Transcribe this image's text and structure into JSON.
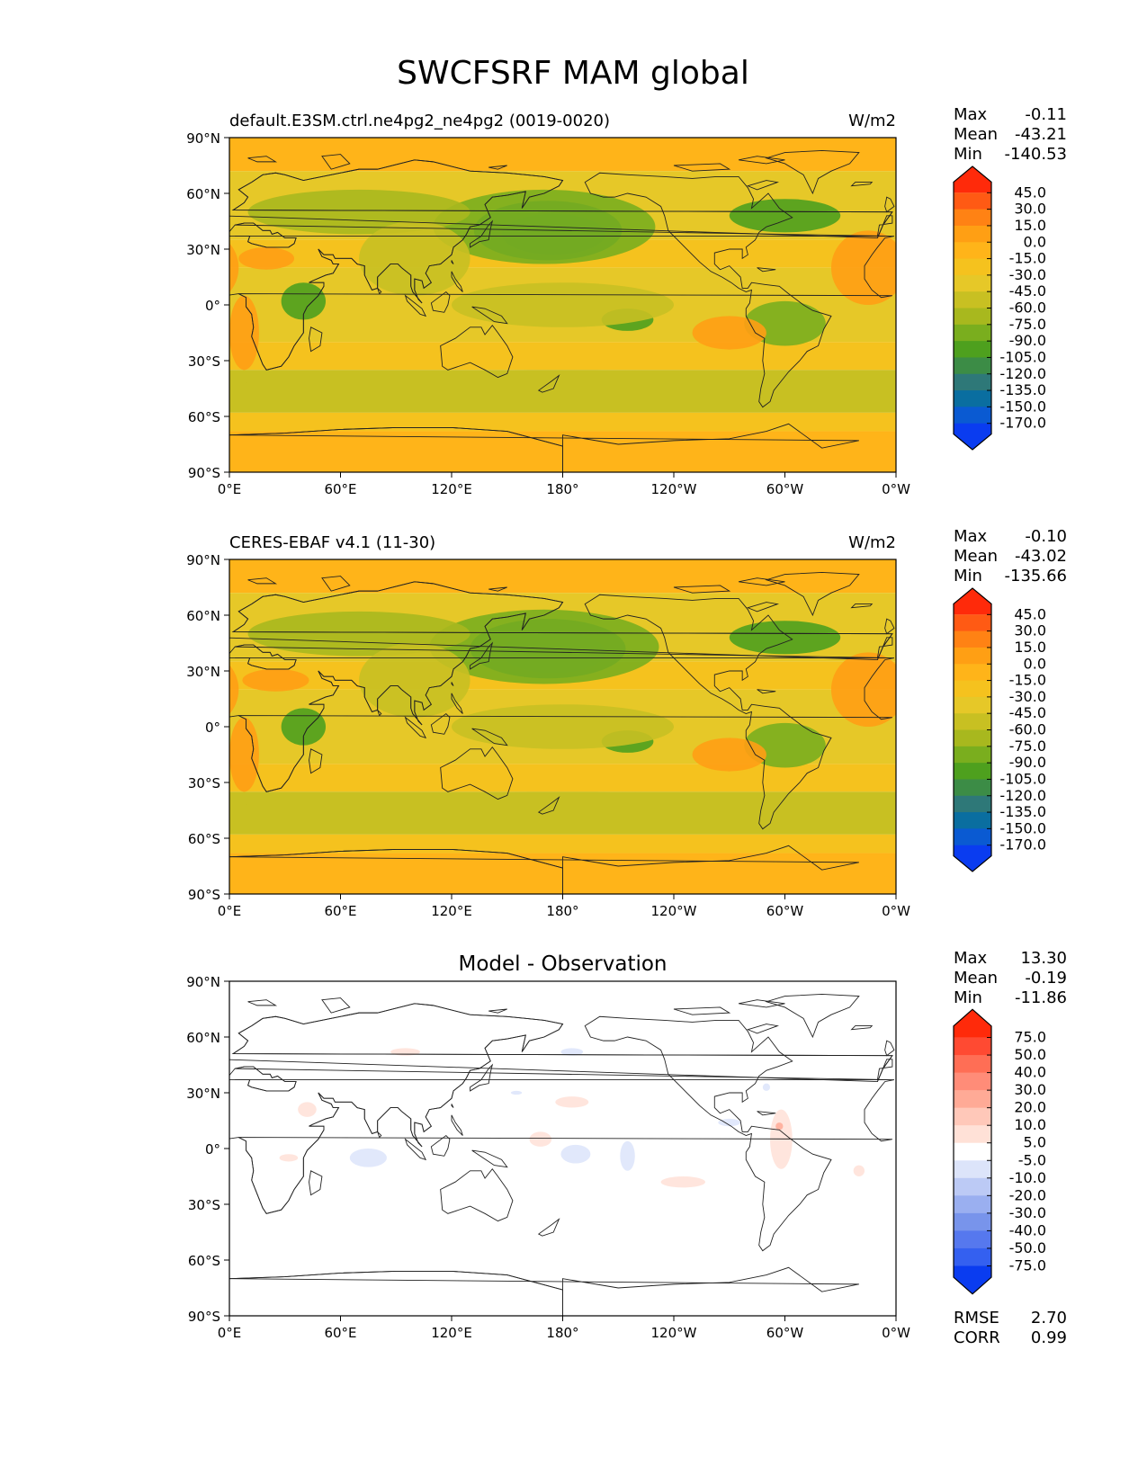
{
  "figure": {
    "title": "SWCFSRF MAM global",
    "lon_ticks": [
      "0°E",
      "60°E",
      "120°E",
      "180°",
      "120°W",
      "60°W",
      "0°W"
    ],
    "lat_ticks": [
      "90°N",
      "60°N",
      "30°N",
      "0°",
      "30°S",
      "60°S",
      "90°S"
    ]
  },
  "chart_data": [
    {
      "type": "heatmap",
      "panel": "test",
      "title_left": "default.E3SM.ctrl.ne4pg2_ne4pg2 (0019-0020)",
      "title_center": "",
      "units": "W/m2",
      "stats": [
        {
          "label": "Max",
          "value": "-0.11"
        },
        {
          "label": "Mean",
          "value": "-43.21"
        },
        {
          "label": "Min",
          "value": "-140.53"
        }
      ],
      "colorbar": {
        "labels": [
          "45.0",
          "30.0",
          "15.0",
          "0.0",
          "-15.0",
          "-30.0",
          "-45.0",
          "-60.0",
          "-75.0",
          "-90.0",
          "-105.0",
          "-120.0",
          "-135.0",
          "-150.0",
          "-170.0"
        ],
        "colors": [
          "#ff2a0a",
          "#ff5a14",
          "#ff8214",
          "#ff9f14",
          "#ffb419",
          "#f5c21e",
          "#e6c828",
          "#c8c022",
          "#a8b81e",
          "#7aae1e",
          "#4ea01e",
          "#3c8c46",
          "#2e7878",
          "#0a6ea0",
          "#0a5ad2",
          "#0a3cf0"
        ]
      },
      "stats_extra": [],
      "x_range": [
        0,
        360
      ],
      "y_range": [
        -90,
        90
      ],
      "features": [
        {
          "lon": 175,
          "lat": 38,
          "rx": 28,
          "ry": 11,
          "level": 13
        },
        {
          "lon": 172,
          "lat": 40,
          "rx": 40,
          "ry": 16,
          "level": 11
        },
        {
          "lon": 170,
          "lat": 42,
          "rx": 60,
          "ry": 20,
          "level": 9
        },
        {
          "lon": 300,
          "lat": 48,
          "rx": 30,
          "ry": 9,
          "level": 10
        },
        {
          "lon": 70,
          "lat": 50,
          "rx": 60,
          "ry": 12,
          "level": 8
        },
        {
          "lon": 40,
          "lat": 2,
          "rx": 12,
          "ry": 10,
          "level": 10
        },
        {
          "lon": 215,
          "lat": -8,
          "rx": 14,
          "ry": 6,
          "level": 10
        },
        {
          "lon": 300,
          "lat": -10,
          "rx": 22,
          "ry": 12,
          "level": 9
        },
        {
          "lon": 180,
          "lat": -45,
          "rx": 180,
          "ry": 10,
          "level": 7
        },
        {
          "lon": 180,
          "lat": 0,
          "rx": 60,
          "ry": 12,
          "level": 7
        },
        {
          "lon": 100,
          "lat": 25,
          "rx": 30,
          "ry": 20,
          "level": 7
        },
        {
          "lon": 8,
          "lat": -15,
          "rx": 8,
          "ry": 20,
          "level": 3
        },
        {
          "lon": 270,
          "lat": -15,
          "rx": 20,
          "ry": 9,
          "level": 3
        },
        {
          "lon": 345,
          "lat": 20,
          "rx": 20,
          "ry": 20,
          "level": 3
        },
        {
          "lon": 20,
          "lat": 25,
          "rx": 15,
          "ry": 6,
          "level": 3
        }
      ]
    },
    {
      "type": "heatmap",
      "panel": "reference",
      "title_left": "CERES-EBAF v4.1 (11-30)",
      "title_center": "",
      "units": "W/m2",
      "stats": [
        {
          "label": "Max",
          "value": "-0.10"
        },
        {
          "label": "Mean",
          "value": "-43.02"
        },
        {
          "label": "Min",
          "value": "-135.66"
        }
      ],
      "colorbar": {
        "labels": [
          "45.0",
          "30.0",
          "15.0",
          "0.0",
          "-15.0",
          "-30.0",
          "-45.0",
          "-60.0",
          "-75.0",
          "-90.0",
          "-105.0",
          "-120.0",
          "-135.0",
          "-150.0",
          "-170.0"
        ],
        "colors": [
          "#ff2a0a",
          "#ff5a14",
          "#ff8214",
          "#ff9f14",
          "#ffb419",
          "#f5c21e",
          "#e6c828",
          "#c8c022",
          "#a8b81e",
          "#7aae1e",
          "#4ea01e",
          "#3c8c46",
          "#2e7878",
          "#0a6ea0",
          "#0a5ad2",
          "#0a3cf0"
        ]
      },
      "stats_extra": [],
      "x_range": [
        0,
        360
      ],
      "y_range": [
        -90,
        90
      ],
      "features": [
        {
          "lon": 175,
          "lat": 40,
          "rx": 28,
          "ry": 11,
          "level": 12
        },
        {
          "lon": 172,
          "lat": 42,
          "rx": 42,
          "ry": 16,
          "level": 11
        },
        {
          "lon": 170,
          "lat": 43,
          "rx": 62,
          "ry": 20,
          "level": 9
        },
        {
          "lon": 300,
          "lat": 48,
          "rx": 30,
          "ry": 9,
          "level": 10
        },
        {
          "lon": 70,
          "lat": 50,
          "rx": 60,
          "ry": 12,
          "level": 8
        },
        {
          "lon": 40,
          "lat": 0,
          "rx": 12,
          "ry": 10,
          "level": 10
        },
        {
          "lon": 215,
          "lat": -8,
          "rx": 14,
          "ry": 6,
          "level": 10
        },
        {
          "lon": 300,
          "lat": -10,
          "rx": 22,
          "ry": 12,
          "level": 9
        },
        {
          "lon": 180,
          "lat": -45,
          "rx": 180,
          "ry": 10,
          "level": 7
        },
        {
          "lon": 180,
          "lat": 0,
          "rx": 60,
          "ry": 12,
          "level": 7
        },
        {
          "lon": 100,
          "lat": 25,
          "rx": 30,
          "ry": 20,
          "level": 7
        },
        {
          "lon": 8,
          "lat": -15,
          "rx": 8,
          "ry": 20,
          "level": 3
        },
        {
          "lon": 270,
          "lat": -15,
          "rx": 20,
          "ry": 9,
          "level": 3
        },
        {
          "lon": 345,
          "lat": 20,
          "rx": 20,
          "ry": 20,
          "level": 3
        },
        {
          "lon": 25,
          "lat": 25,
          "rx": 18,
          "ry": 6,
          "level": 3
        }
      ]
    },
    {
      "type": "heatmap",
      "panel": "difference",
      "title_left": "",
      "title_center": "Model - Observation",
      "units": "",
      "stats": [
        {
          "label": "Max",
          "value": "13.30"
        },
        {
          "label": "Mean",
          "value": "-0.19"
        },
        {
          "label": "Min",
          "value": "-11.86"
        }
      ],
      "colorbar": {
        "labels": [
          "75.0",
          "50.0",
          "40.0",
          "30.0",
          "20.0",
          "10.0",
          "5.0",
          "-5.0",
          "-10.0",
          "-20.0",
          "-30.0",
          "-40.0",
          "-50.0",
          "-75.0"
        ],
        "colors": [
          "#ff2a0a",
          "#ff4a32",
          "#ff6e55",
          "#ff8c78",
          "#ffaa96",
          "#ffc8b9",
          "#ffe1d7",
          "#ffffff",
          "#dce4fa",
          "#bccaf5",
          "#9aaff0",
          "#7894eb",
          "#5678ee",
          "#3460f0",
          "#0a3cf0"
        ]
      },
      "stats_extra": [
        {
          "label": "RMSE",
          "value": "2.70"
        },
        {
          "label": "CORR",
          "value": "0.99"
        }
      ],
      "x_range": [
        0,
        360
      ],
      "y_range": [
        -90,
        90
      ],
      "features": [
        {
          "lon": 95,
          "lat": 52,
          "rx": 8,
          "ry": 2,
          "level": 6
        },
        {
          "lon": 185,
          "lat": 25,
          "rx": 9,
          "ry": 3,
          "level": 6
        },
        {
          "lon": 42,
          "lat": 21,
          "rx": 5,
          "ry": 4,
          "level": 6
        },
        {
          "lon": 168,
          "lat": 5,
          "rx": 6,
          "ry": 4,
          "level": 6
        },
        {
          "lon": 32,
          "lat": -5,
          "rx": 5,
          "ry": 2,
          "level": 6
        },
        {
          "lon": 245,
          "lat": -18,
          "rx": 12,
          "ry": 3,
          "level": 6
        },
        {
          "lon": 298,
          "lat": 5,
          "rx": 6,
          "ry": 16,
          "level": 6
        },
        {
          "lon": 340,
          "lat": -12,
          "rx": 3,
          "ry": 3,
          "level": 6
        },
        {
          "lon": 297,
          "lat": 12,
          "rx": 2,
          "ry": 2,
          "level": 4
        },
        {
          "lon": 185,
          "lat": 52,
          "rx": 6,
          "ry": 2,
          "level": 8
        },
        {
          "lon": 75,
          "lat": -5,
          "rx": 10,
          "ry": 5,
          "level": 8
        },
        {
          "lon": 187,
          "lat": -3,
          "rx": 8,
          "ry": 5,
          "level": 8
        },
        {
          "lon": 215,
          "lat": -4,
          "rx": 4,
          "ry": 8,
          "level": 8
        },
        {
          "lon": 270,
          "lat": 14,
          "rx": 6,
          "ry": 2,
          "level": 8
        },
        {
          "lon": 155,
          "lat": 30,
          "rx": 3,
          "ry": 1,
          "level": 8
        },
        {
          "lon": 290,
          "lat": 33,
          "rx": 2,
          "ry": 2,
          "level": 8
        }
      ]
    }
  ]
}
